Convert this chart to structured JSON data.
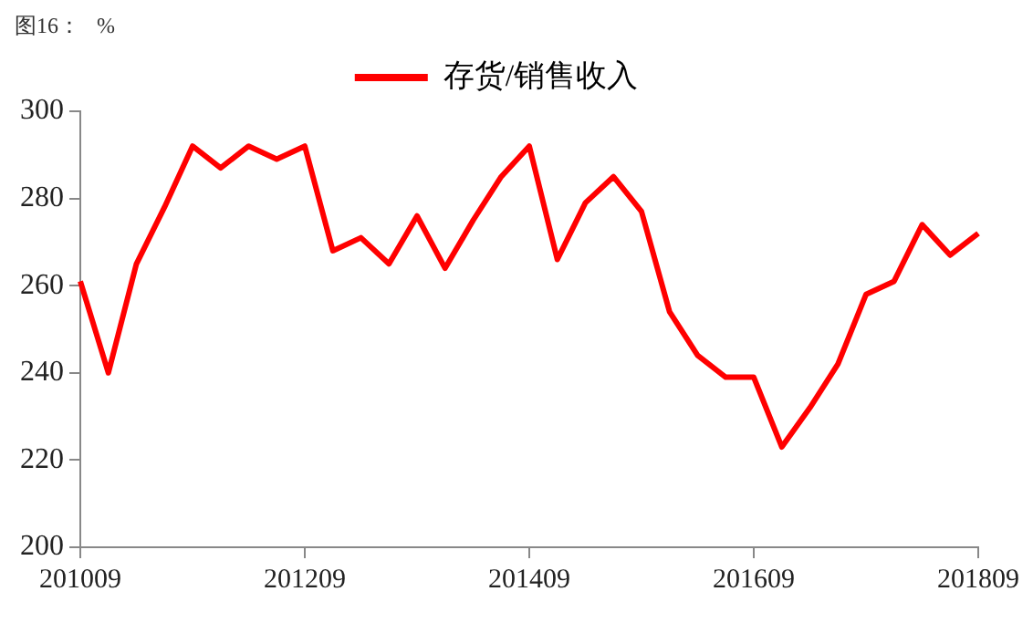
{
  "chart_data": {
    "type": "line",
    "title": "图16：",
    "ylabel": "%",
    "categories": [
      "201009",
      null,
      null,
      null,
      null,
      null,
      null,
      null,
      "201209",
      null,
      null,
      null,
      null,
      null,
      null,
      null,
      "201409",
      null,
      null,
      null,
      null,
      null,
      null,
      null,
      "201609",
      null,
      null,
      null,
      null,
      null,
      null,
      null,
      "201809"
    ],
    "series": [
      {
        "name": "存货/销售收入",
        "color": "#ff0000",
        "values": [
          261,
          240,
          265,
          278,
          292,
          287,
          292,
          289,
          292,
          268,
          271,
          265,
          276,
          264,
          275,
          285,
          292,
          266,
          279,
          285,
          277,
          254,
          244,
          239,
          239,
          223,
          232,
          242,
          258,
          261,
          274,
          267,
          272
        ]
      }
    ],
    "ylim": [
      200,
      300
    ],
    "yticks": [
      200,
      220,
      240,
      260,
      280,
      300
    ],
    "grid": false,
    "legend": "top",
    "marker": "none",
    "line_style": "solid"
  }
}
